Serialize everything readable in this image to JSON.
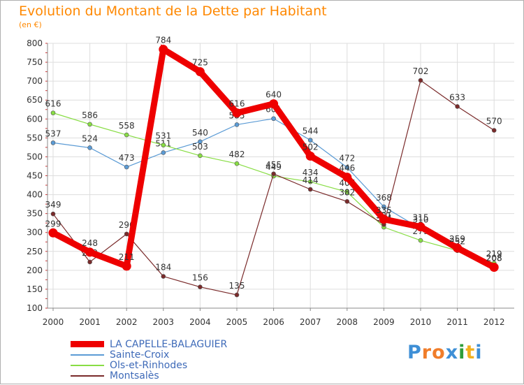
{
  "title": "Evolution du Montant de la Dette par Habitant",
  "unit_label": "(en €)",
  "logo": {
    "text": "Proxiti",
    "colors": [
      "#3e8fd6",
      "#f07d2a",
      "#f07d2a",
      "#3e8fd6",
      "#2e9d3a",
      "#f2b01e",
      "#3e8fd6"
    ]
  },
  "chart_data": {
    "type": "line",
    "title": "Evolution du Montant de la Dette par Habitant",
    "ylabel": "(en €)",
    "xlabel": "",
    "ylim": [
      100,
      800
    ],
    "yticks": [
      100,
      150,
      200,
      250,
      300,
      350,
      400,
      450,
      500,
      550,
      600,
      650,
      700,
      750,
      800
    ],
    "categories": [
      "2000",
      "2001",
      "2002",
      "2003",
      "2004",
      "2005",
      "2006",
      "2007",
      "2008",
      "2009",
      "2010",
      "2011",
      "2012"
    ],
    "grid": true,
    "legend_position": "bottom-left",
    "series": [
      {
        "name": "LA CAPELLE-BALAGUIER",
        "color": "#ee0000",
        "bold": true,
        "values": [
          299,
          248,
          211,
          784,
          725,
          616,
          640,
          502,
          446,
          335,
          315,
          259,
          208
        ]
      },
      {
        "name": "Sainte-Croix",
        "color": "#5b9bd5",
        "bold": false,
        "values": [
          537,
          524,
          473,
          511,
          540,
          585,
          601,
          544,
          472,
          368,
          310,
          252,
          208
        ]
      },
      {
        "name": "Ols-et-Rinhodes",
        "color": "#88dd44",
        "bold": false,
        "values": [
          616,
          586,
          558,
          531,
          503,
          482,
          449,
          434,
          407,
          314,
          279,
          252,
          219
        ]
      },
      {
        "name": "Montsalès",
        "color": "#7a2a2a",
        "bold": false,
        "values": [
          349,
          222,
          296,
          184,
          156,
          135,
          455,
          414,
          382,
          321,
          702,
          633,
          570
        ]
      }
    ]
  }
}
